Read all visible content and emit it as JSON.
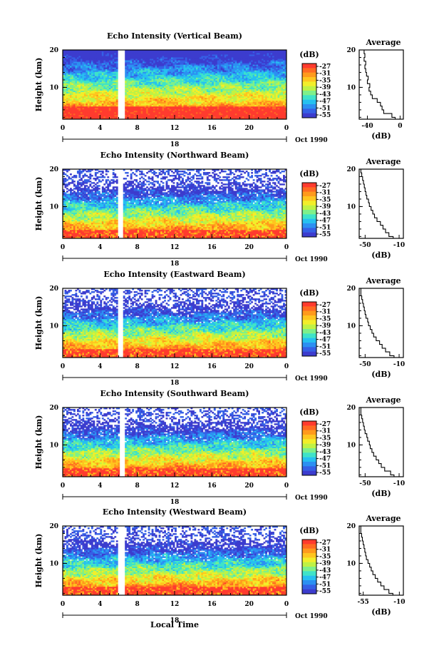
{
  "page": {
    "xlabel": "Local Time"
  },
  "colorbar": {
    "unit": "(dB)",
    "ticks": [
      "-27",
      "-31",
      "-35",
      "-39",
      "-43",
      "-47",
      "-51",
      "-55"
    ],
    "colors": [
      "#ff3b2e",
      "#ff6a22",
      "#ff9a1c",
      "#ffc51f",
      "#f2ee2a",
      "#bff245",
      "#7ef08a",
      "#3fe3c8",
      "#26c0f0",
      "#2c90f2",
      "#3560e6",
      "#3c3cce"
    ]
  },
  "chart_data": [
    {
      "type": "heatmap",
      "title": "Echo Intensity (Vertical Beam)",
      "ylabel": "Height (km)",
      "xticks": [
        "0",
        "4",
        "8",
        "12",
        "16",
        "20",
        "0"
      ],
      "yticks": [
        "20",
        "10"
      ],
      "date_label": "18",
      "date_caption": "Oct 1990",
      "xlim": [
        0,
        24
      ],
      "ylim": [
        1.5,
        20
      ],
      "gap_hours": [
        6.0,
        6.7
      ],
      "average": {
        "title": "Average",
        "xlabel": "(dB)",
        "xticks": [
          "-40",
          "0"
        ],
        "xlim": [
          -50,
          4
        ],
        "height": [
          1.5,
          2,
          3,
          4,
          5,
          6,
          7,
          8,
          9,
          10,
          11,
          12,
          13,
          14,
          15,
          16,
          17,
          18,
          19,
          20
        ],
        "db": [
          -2,
          -6,
          -10,
          -20,
          -22,
          -24,
          -28,
          -34,
          -36,
          -38,
          -37,
          -40,
          -39,
          -41,
          -42,
          -43,
          -42,
          -44,
          -43,
          -44
        ]
      }
    },
    {
      "type": "heatmap",
      "title": "Echo Intensity (Northward Beam)",
      "ylabel": "Height (km)",
      "xticks": [
        "0",
        "4",
        "8",
        "12",
        "16",
        "20",
        "0"
      ],
      "yticks": [
        "20",
        "10"
      ],
      "date_label": "18",
      "date_caption": "Oct 1990",
      "xlim": [
        0,
        24
      ],
      "ylim": [
        1.5,
        20
      ],
      "gap_hours": [
        5.9,
        6.5
      ],
      "average": {
        "title": "Average",
        "xlabel": "(dB)",
        "xticks": [
          "-50",
          "-10"
        ],
        "xlim": [
          -57,
          -5
        ],
        "height": [
          1.5,
          2,
          3,
          4,
          5,
          6,
          7,
          8,
          9,
          10,
          11,
          12,
          13,
          14,
          15,
          16,
          17,
          18,
          19,
          20
        ],
        "db": [
          -20,
          -17,
          -22,
          -26,
          -29,
          -32,
          -36,
          -39,
          -41,
          -43,
          -45,
          -46,
          -48,
          -49,
          -50,
          -51,
          -52,
          -53,
          -54,
          -55
        ]
      }
    },
    {
      "type": "heatmap",
      "title": "Echo Intensity (Eastward Beam)",
      "ylabel": "Height (km)",
      "xticks": [
        "0",
        "4",
        "8",
        "12",
        "16",
        "20",
        "0"
      ],
      "yticks": [
        "20",
        "10"
      ],
      "date_label": "18",
      "date_caption": "Oct 1990",
      "xlim": [
        0,
        24
      ],
      "ylim": [
        1.5,
        20
      ],
      "gap_hours": [
        5.9,
        6.5
      ],
      "average": {
        "title": "Average",
        "xlabel": "(dB)",
        "xticks": [
          "-50",
          "-10"
        ],
        "xlim": [
          -57,
          -5
        ],
        "height": [
          1.5,
          2,
          3,
          4,
          5,
          6,
          7,
          8,
          9,
          10,
          11,
          12,
          13,
          14,
          15,
          16,
          17,
          18,
          19,
          20
        ],
        "db": [
          -18,
          -16,
          -21,
          -26,
          -30,
          -33,
          -37,
          -40,
          -42,
          -44,
          -46,
          -47,
          -49,
          -50,
          -51,
          -52,
          -53,
          -54,
          -55,
          -55
        ]
      }
    },
    {
      "type": "heatmap",
      "title": "Echo Intensity (Southward Beam)",
      "ylabel": "Height (km)",
      "xticks": [
        "0",
        "4",
        "8",
        "12",
        "16",
        "20",
        "0"
      ],
      "yticks": [
        "20",
        "10"
      ],
      "date_label": "18",
      "date_caption": "Oct 1990",
      "xlim": [
        0,
        24
      ],
      "ylim": [
        1.5,
        20
      ],
      "gap_hours": [
        6.1,
        6.7
      ],
      "average": {
        "title": "Average",
        "xlabel": "(dB)",
        "xticks": [
          "-50",
          "-10"
        ],
        "xlim": [
          -57,
          -5
        ],
        "height": [
          1.5,
          2,
          3,
          4,
          5,
          6,
          7,
          8,
          9,
          10,
          11,
          12,
          13,
          14,
          15,
          16,
          17,
          18,
          19,
          20
        ],
        "db": [
          -12,
          -16,
          -20,
          -27,
          -31,
          -34,
          -37,
          -40,
          -42,
          -44,
          -45,
          -47,
          -48,
          -50,
          -51,
          -52,
          -53,
          -54,
          -55,
          -55
        ]
      }
    },
    {
      "type": "heatmap",
      "title": "Echo Intensity (Westward Beam)",
      "ylabel": "Height (km)",
      "xticks": [
        "0",
        "4",
        "8",
        "12",
        "16",
        "20",
        "0"
      ],
      "yticks": [
        "20",
        "10"
      ],
      "date_label": "18",
      "date_caption": "Oct 1990",
      "xlim": [
        0,
        24
      ],
      "ylim": [
        1.5,
        20
      ],
      "gap_hours": [
        6.0,
        6.6
      ],
      "average": {
        "title": "Average",
        "xlabel": "(dB)",
        "xticks": [
          "-55",
          "-10"
        ],
        "xlim": [
          -60,
          -5
        ],
        "height": [
          1.5,
          2,
          3,
          4,
          5,
          6,
          7,
          8,
          9,
          10,
          11,
          12,
          13,
          14,
          15,
          16,
          17,
          18,
          19,
          20
        ],
        "db": [
          -16,
          -18,
          -23,
          -29,
          -33,
          -37,
          -40,
          -43,
          -45,
          -47,
          -49,
          -51,
          -52,
          -53,
          -54,
          -55,
          -56,
          -57,
          -58,
          -58
        ]
      }
    }
  ]
}
